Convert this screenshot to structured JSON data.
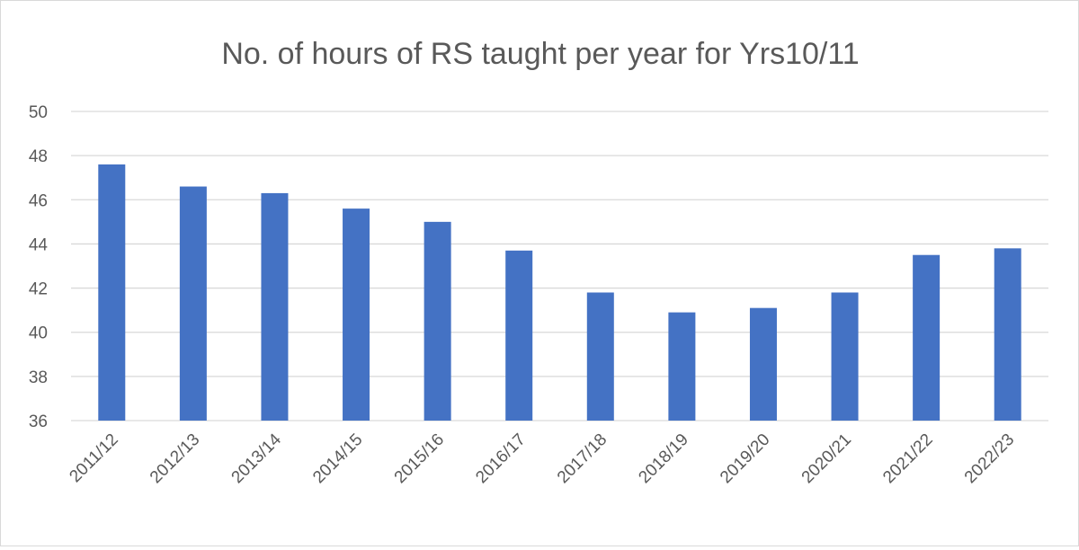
{
  "chart_data": {
    "type": "bar",
    "title": "No. of hours of RS taught per year for Yrs10/11",
    "xlabel": "",
    "ylabel": "",
    "categories": [
      "2011/12",
      "2012/13",
      "2013/14",
      "2014/15",
      "2015/16",
      "2016/17",
      "2017/18",
      "2018/19",
      "2019/20",
      "2020/21",
      "2021/22",
      "2022/23"
    ],
    "series": [
      {
        "values": [
          47.6,
          46.6,
          46.3,
          45.6,
          45.0,
          43.7,
          41.8,
          40.9,
          41.1,
          41.8,
          43.5,
          43.8
        ]
      }
    ],
    "ylim": [
      36,
      50
    ],
    "yticks": [
      36,
      38,
      40,
      42,
      44,
      46,
      48,
      50
    ],
    "bar_color": "#4472c4",
    "grid": true,
    "legend": "none"
  }
}
